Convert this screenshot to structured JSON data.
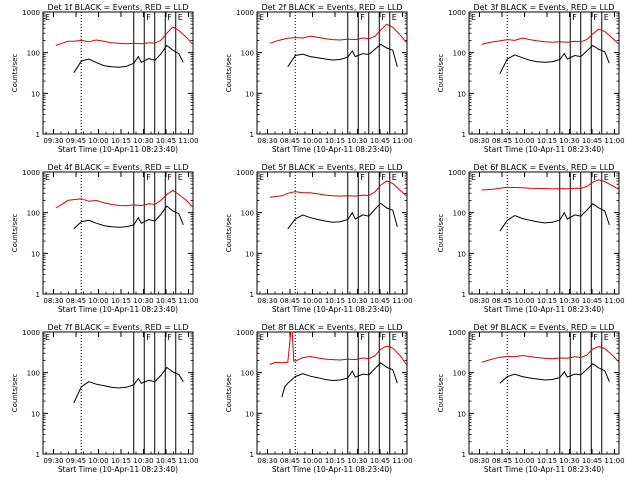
{
  "figure": {
    "panels_layout": "3x3 grid",
    "shared": {
      "ylabel": "Counts/sec",
      "xlabel": "Start Time (10-Apr-11 08:23:40)",
      "ytick_labels": [
        "1",
        "10",
        "100",
        "1000"
      ],
      "ylim": [
        1,
        1000
      ],
      "yscale": "log",
      "xtick_labels_type_a": [
        "09:30",
        "09:45",
        "10:00",
        "10:15",
        "10:30",
        "10:45",
        "11:00"
      ],
      "xtick_labels_type_b": [
        "08:30",
        "08:45",
        "10:00",
        "10:15",
        "10:30",
        "10:45",
        "11:00"
      ],
      "xlim_minutes": [
        9.5,
        109.5
      ],
      "dotted_marker_minute": 35,
      "interval_markers": [
        {
          "minute": 70,
          "label": ""
        },
        {
          "minute": 77,
          "label": "F"
        },
        {
          "minute": 84,
          "label": ""
        },
        {
          "minute": 91,
          "label": "F"
        },
        {
          "minute": 98,
          "label": "E"
        }
      ],
      "left_marker_label": "E",
      "colors": {
        "events": "#000000",
        "lld": "#dd0000",
        "dotted": "#000000"
      }
    }
  },
  "chart_data": [
    {
      "type": "line",
      "title": "Det 1f BLACK = Events, RED = LLD",
      "tick_set": "a",
      "series": [
        {
          "name": "Events",
          "color": "black",
          "x_minutes": [
            30,
            35,
            40,
            45,
            50,
            55,
            60,
            65,
            70,
            73,
            75,
            80,
            84,
            88,
            92,
            96,
            100,
            103
          ],
          "values": [
            32,
            62,
            70,
            57,
            48,
            45,
            44,
            46,
            55,
            80,
            58,
            72,
            65,
            92,
            150,
            115,
            95,
            58
          ]
        },
        {
          "name": "LLD",
          "color": "red",
          "x_minutes": [
            18,
            22,
            26,
            30,
            35,
            40,
            45,
            50,
            55,
            60,
            65,
            70,
            75,
            80,
            84,
            88,
            92,
            96,
            100,
            105,
            109
          ],
          "values": [
            150,
            170,
            190,
            190,
            200,
            185,
            205,
            190,
            175,
            170,
            165,
            170,
            165,
            175,
            170,
            200,
            300,
            430,
            350,
            240,
            165
          ]
        }
      ]
    },
    {
      "type": "line",
      "title": "Det 2f BLACK = Events, RED = LLD",
      "tick_set": "b",
      "series": [
        {
          "name": "Events",
          "color": "black",
          "x_minutes": [
            30,
            35,
            40,
            45,
            50,
            55,
            60,
            65,
            70,
            73,
            75,
            80,
            84,
            88,
            92,
            96,
            100,
            103
          ],
          "values": [
            45,
            85,
            92,
            80,
            75,
            70,
            66,
            68,
            78,
            110,
            80,
            95,
            90,
            120,
            160,
            130,
            115,
            45
          ]
        },
        {
          "name": "LLD",
          "color": "red",
          "x_minutes": [
            18,
            22,
            26,
            30,
            35,
            40,
            45,
            50,
            55,
            60,
            65,
            70,
            75,
            80,
            84,
            88,
            92,
            96,
            100,
            105,
            109
          ],
          "values": [
            170,
            190,
            210,
            225,
            235,
            230,
            255,
            240,
            220,
            210,
            205,
            215,
            210,
            230,
            220,
            250,
            360,
            500,
            420,
            270,
            180
          ]
        }
      ]
    },
    {
      "type": "line",
      "title": "Det 3f BLACK = Events, RED = LLD",
      "tick_set": "b",
      "series": [
        {
          "name": "Events",
          "color": "black",
          "x_minutes": [
            30,
            35,
            40,
            45,
            50,
            55,
            60,
            65,
            70,
            73,
            75,
            80,
            84,
            88,
            92,
            96,
            100,
            103
          ],
          "values": [
            30,
            70,
            88,
            75,
            65,
            60,
            58,
            60,
            68,
            95,
            70,
            85,
            80,
            110,
            150,
            120,
            105,
            55
          ]
        },
        {
          "name": "LLD",
          "color": "red",
          "x_minutes": [
            18,
            22,
            26,
            30,
            35,
            40,
            45,
            50,
            55,
            60,
            65,
            70,
            75,
            80,
            84,
            88,
            92,
            96,
            100,
            105,
            109
          ],
          "values": [
            160,
            175,
            185,
            195,
            210,
            200,
            230,
            210,
            195,
            185,
            180,
            185,
            180,
            190,
            185,
            210,
            290,
            380,
            330,
            230,
            165
          ]
        }
      ]
    },
    {
      "type": "line",
      "title": "Det 4f BLACK = Events, RED = LLD",
      "tick_set": "b",
      "series": [
        {
          "name": "Events",
          "color": "black",
          "x_minutes": [
            30,
            35,
            40,
            45,
            50,
            55,
            60,
            65,
            70,
            73,
            75,
            80,
            84,
            88,
            92,
            96,
            100,
            103
          ],
          "values": [
            40,
            60,
            65,
            55,
            48,
            45,
            44,
            45,
            50,
            75,
            55,
            68,
            62,
            90,
            145,
            110,
            95,
            50
          ]
        },
        {
          "name": "LLD",
          "color": "red",
          "x_minutes": [
            18,
            22,
            26,
            30,
            35,
            40,
            45,
            50,
            55,
            60,
            65,
            70,
            75,
            80,
            84,
            88,
            92,
            96,
            100,
            105,
            109
          ],
          "values": [
            130,
            160,
            200,
            210,
            220,
            190,
            200,
            175,
            160,
            150,
            148,
            155,
            150,
            165,
            160,
            200,
            280,
            350,
            280,
            200,
            140
          ]
        }
      ]
    },
    {
      "type": "line",
      "title": "Det 5f BLACK = Events, RED = LLD",
      "tick_set": "b",
      "series": [
        {
          "name": "Events",
          "color": "black",
          "x_minutes": [
            30,
            35,
            40,
            45,
            50,
            55,
            60,
            65,
            70,
            73,
            75,
            80,
            84,
            88,
            92,
            96,
            100,
            103
          ],
          "values": [
            40,
            70,
            88,
            75,
            68,
            62,
            58,
            60,
            68,
            100,
            70,
            88,
            82,
            120,
            170,
            130,
            115,
            45
          ]
        },
        {
          "name": "LLD",
          "color": "red",
          "x_minutes": [
            18,
            22,
            26,
            30,
            35,
            40,
            45,
            50,
            55,
            60,
            65,
            70,
            75,
            80,
            84,
            88,
            92,
            96,
            100,
            105,
            109
          ],
          "values": [
            240,
            250,
            260,
            300,
            330,
            310,
            310,
            290,
            270,
            260,
            255,
            260,
            255,
            270,
            265,
            320,
            480,
            600,
            520,
            350,
            260
          ]
        }
      ]
    },
    {
      "type": "line",
      "title": "Det 6f BLACK = Events, RED = LLD",
      "tick_set": "b",
      "series": [
        {
          "name": "Events",
          "color": "black",
          "x_minutes": [
            30,
            35,
            40,
            45,
            50,
            55,
            60,
            65,
            70,
            73,
            75,
            80,
            84,
            88,
            92,
            96,
            100,
            103
          ],
          "values": [
            35,
            65,
            85,
            72,
            65,
            60,
            56,
            58,
            66,
            100,
            70,
            88,
            82,
            115,
            165,
            130,
            110,
            50
          ]
        },
        {
          "name": "LLD",
          "color": "red",
          "x_minutes": [
            18,
            22,
            26,
            30,
            35,
            40,
            45,
            50,
            55,
            60,
            65,
            70,
            75,
            80,
            84,
            88,
            92,
            96,
            100,
            105,
            109
          ],
          "values": [
            360,
            370,
            380,
            400,
            420,
            415,
            410,
            400,
            395,
            390,
            385,
            390,
            385,
            400,
            395,
            440,
            560,
            640,
            580,
            460,
            380
          ]
        }
      ]
    },
    {
      "type": "line",
      "title": "Det 7f BLACK = Events, RED = LLD",
      "tick_set": "a",
      "series": [
        {
          "name": "Events",
          "color": "black",
          "x_minutes": [
            30,
            35,
            40,
            45,
            50,
            55,
            60,
            65,
            70,
            73,
            75,
            80,
            84,
            88,
            92,
            96,
            100,
            103
          ],
          "values": [
            18,
            45,
            60,
            52,
            48,
            44,
            42,
            44,
            50,
            72,
            55,
            65,
            60,
            85,
            135,
            105,
            90,
            60
          ]
        }
      ]
    },
    {
      "type": "line",
      "title": "Det 8f BLACK = Events, RED = LLD",
      "tick_set": "b",
      "series": [
        {
          "name": "Events",
          "color": "black",
          "x_minutes": [
            26,
            28,
            30,
            35,
            40,
            45,
            50,
            55,
            60,
            65,
            70,
            73,
            75,
            80,
            84,
            88,
            92,
            96,
            100,
            103
          ],
          "values": [
            25,
            45,
            55,
            80,
            95,
            82,
            75,
            68,
            64,
            66,
            74,
            110,
            78,
            92,
            88,
            125,
            175,
            135,
            118,
            55
          ]
        },
        {
          "name": "LLD",
          "color": "red",
          "x_minutes": [
            18,
            22,
            26,
            30,
            32,
            33,
            34,
            36,
            40,
            45,
            50,
            55,
            60,
            65,
            70,
            75,
            80,
            84,
            88,
            92,
            96,
            100,
            105,
            109
          ],
          "values": [
            160,
            180,
            175,
            180,
            1000,
            1000,
            190,
            200,
            235,
            250,
            230,
            215,
            210,
            205,
            215,
            210,
            230,
            220,
            260,
            380,
            450,
            400,
            260,
            160
          ]
        }
      ]
    },
    {
      "type": "line",
      "title": "Det 9f BLACK = Events, RED = LLD",
      "tick_set": "b",
      "series": [
        {
          "name": "Events",
          "color": "black",
          "x_minutes": [
            30,
            35,
            40,
            45,
            50,
            55,
            60,
            65,
            70,
            73,
            75,
            80,
            84,
            88,
            92,
            96,
            100,
            103
          ],
          "values": [
            55,
            80,
            92,
            80,
            74,
            70,
            66,
            68,
            76,
            105,
            78,
            92,
            88,
            120,
            165,
            130,
            112,
            60
          ]
        },
        {
          "name": "LLD",
          "color": "red",
          "x_minutes": [
            18,
            22,
            26,
            30,
            35,
            40,
            45,
            50,
            55,
            60,
            65,
            70,
            75,
            80,
            84,
            88,
            92,
            96,
            100,
            105,
            109
          ],
          "values": [
            180,
            200,
            220,
            240,
            250,
            245,
            265,
            250,
            235,
            225,
            220,
            230,
            225,
            245,
            235,
            270,
            380,
            440,
            390,
            270,
            190
          ]
        }
      ]
    }
  ]
}
